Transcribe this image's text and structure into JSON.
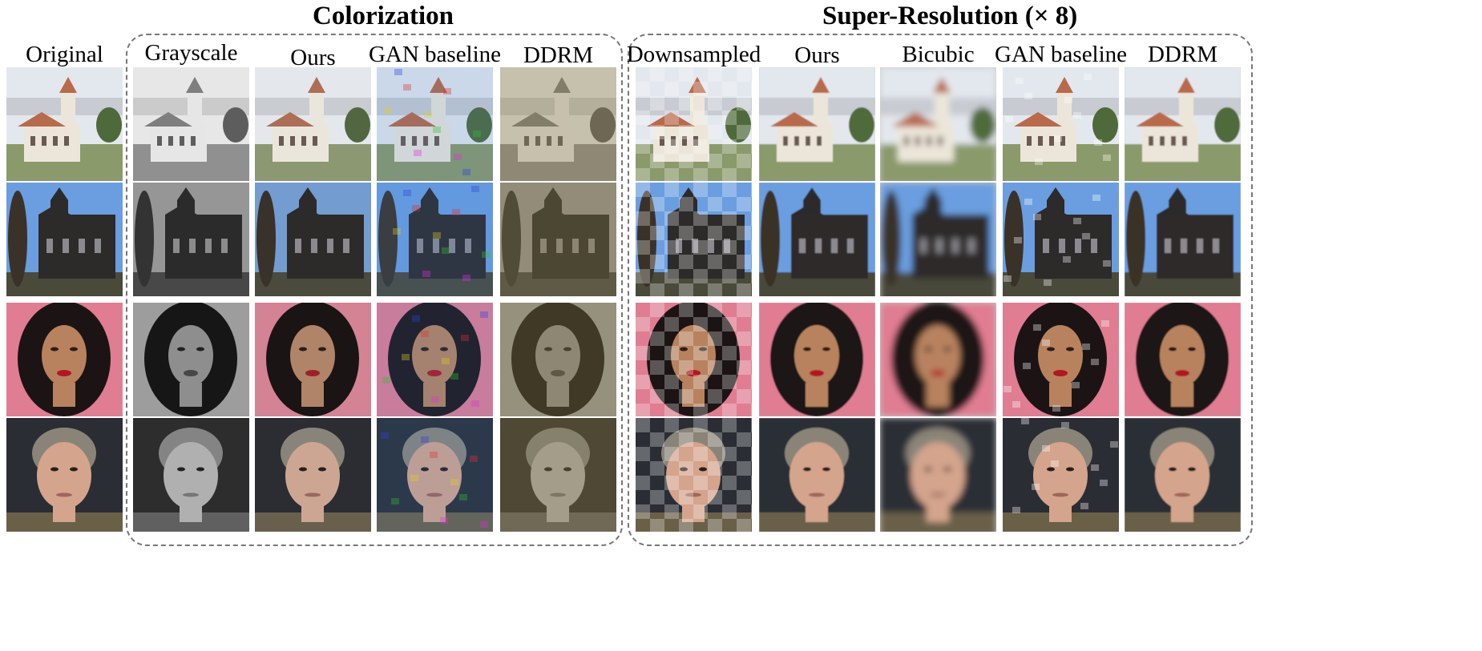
{
  "figure": {
    "sections": [
      {
        "id": "colorization",
        "title": "Colorization"
      },
      {
        "id": "super_resolution",
        "title": "Super-Resolution (× 8)"
      }
    ],
    "columns": [
      {
        "id": "original",
        "label": "Original",
        "section": "none",
        "treatment": "original"
      },
      {
        "id": "col_gray",
        "label": "Grayscale",
        "section": "colorization",
        "treatment": "grayscale"
      },
      {
        "id": "col_ours",
        "label": "Ours",
        "section": "colorization",
        "treatment": "ours-color"
      },
      {
        "id": "col_gan",
        "label": "GAN baseline",
        "section": "colorization",
        "treatment": "gan-color"
      },
      {
        "id": "col_ddrm",
        "label": "DDRM",
        "section": "colorization",
        "treatment": "ddrm-color"
      },
      {
        "id": "sr_down",
        "label": "Downsampled",
        "section": "super_resolution",
        "treatment": "pixelated"
      },
      {
        "id": "sr_ours",
        "label": "Ours",
        "section": "super_resolution",
        "treatment": "slight-blur"
      },
      {
        "id": "sr_bicubic",
        "label": "Bicubic",
        "section": "super_resolution",
        "treatment": "heavy-blur"
      },
      {
        "id": "sr_gan",
        "label": "GAN baseline",
        "section": "super_resolution",
        "treatment": "artifacts"
      },
      {
        "id": "sr_ddrm",
        "label": "DDRM",
        "section": "super_resolution",
        "treatment": "slight-blur"
      }
    ],
    "rows": [
      {
        "id": "church_waterfront",
        "subject": "church-icon",
        "sky": "#e3e8ee",
        "ground": "#8a9a6a",
        "accent": "#b86a4a",
        "building": "#ece6da"
      },
      {
        "id": "church_dark",
        "subject": "dark-church-icon",
        "sky": "#6a9ee0",
        "ground": "#4a4a3a",
        "accent": "#2b2b2b",
        "building": "#2d2a2a"
      },
      {
        "id": "woman_portrait",
        "subject": "portrait-icon",
        "backdrop": "#e07d92",
        "hair": "#1c1414",
        "skin": "#b8825e",
        "lips": "#b01822"
      },
      {
        "id": "man_portrait",
        "subject": "portrait-icon",
        "backdrop": "#2a2d34",
        "hair": "#8a8478",
        "skin": "#d4a48c",
        "shirt": "#6a6048"
      }
    ]
  }
}
